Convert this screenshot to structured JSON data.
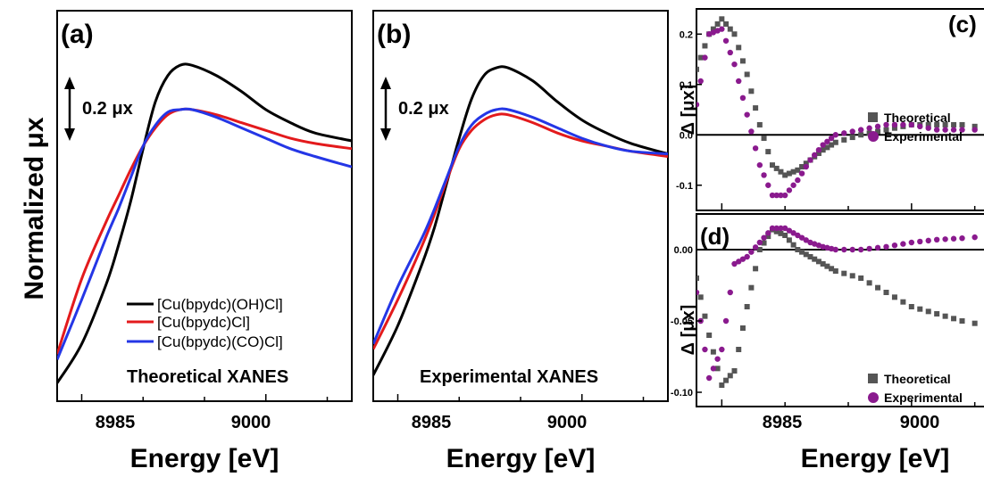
{
  "figure": {
    "ylabel": "Normalized μx",
    "xlabel": "Energy [eV]",
    "scalebar_label": "0.2 μx"
  },
  "colors": {
    "black_series": "#000000",
    "red_series": "#e31a1c",
    "blue_series": "#2436e6",
    "theoretical_marker": "#555555",
    "experimental_marker": "#8a1a8e"
  },
  "chart_data": [
    {
      "panel": "(a)",
      "type": "line",
      "annotation": "Theoretical XANES",
      "xlabel": "Energy [eV]",
      "ylabel": "Normalized μx",
      "xlim": [
        8983,
        9007
      ],
      "xticks": [
        8985,
        9000
      ],
      "scalebar": 0.2,
      "legend_position": "bottom-center",
      "series": [
        {
          "name": "[Cu(bpydc)(OH)Cl]",
          "color": "#000000",
          "x": [
            8983,
            8985,
            8987,
            8988,
            8989,
            8990,
            8991,
            8992,
            8993,
            8994,
            8996,
            8998,
            9000,
            9002,
            9004,
            9007
          ],
          "y": [
            0.02,
            0.17,
            0.4,
            0.55,
            0.72,
            0.92,
            1.1,
            1.2,
            1.24,
            1.24,
            1.2,
            1.14,
            1.07,
            1.02,
            0.98,
            0.95
          ]
        },
        {
          "name": "[Cu(bpydc)Cl]",
          "color": "#e31a1c",
          "x": [
            8983,
            8985,
            8987,
            8988,
            8989,
            8990,
            8991,
            8992,
            8993,
            8994,
            8996,
            8998,
            9000,
            9002,
            9004,
            9007
          ],
          "y": [
            0.13,
            0.42,
            0.64,
            0.74,
            0.84,
            0.93,
            1.0,
            1.05,
            1.07,
            1.07,
            1.05,
            1.02,
            0.99,
            0.96,
            0.94,
            0.92
          ]
        },
        {
          "name": "[Cu(bpydc)(CO)Cl]",
          "color": "#2436e6",
          "x": [
            8983,
            8985,
            8987,
            8988,
            8989,
            8990,
            8991,
            8992,
            8993,
            8994,
            8996,
            8998,
            9000,
            9002,
            9004,
            9007
          ],
          "y": [
            0.11,
            0.34,
            0.58,
            0.69,
            0.81,
            0.93,
            1.01,
            1.06,
            1.07,
            1.07,
            1.04,
            1.0,
            0.96,
            0.92,
            0.89,
            0.85
          ]
        }
      ]
    },
    {
      "panel": "(b)",
      "type": "line",
      "annotation": "Experimental XANES",
      "xlabel": "Energy [eV]",
      "xlim": [
        8983,
        9007
      ],
      "xticks": [
        8985,
        9000
      ],
      "scalebar": 0.2,
      "series": [
        {
          "name": "[Cu(bpydc)(OH)Cl]",
          "color": "#000000",
          "x": [
            8983,
            8985,
            8987,
            8988,
            8989,
            8990,
            8991,
            8992,
            8993,
            8994,
            8996,
            8998,
            9000,
            9002,
            9004,
            9007
          ],
          "y": [
            0.05,
            0.24,
            0.48,
            0.62,
            0.79,
            0.96,
            1.11,
            1.2,
            1.23,
            1.23,
            1.18,
            1.1,
            1.03,
            0.98,
            0.94,
            0.9
          ]
        },
        {
          "name": "[Cu(bpydc)Cl]",
          "color": "#e31a1c",
          "x": [
            8983,
            8985,
            8987,
            8988,
            8989,
            8990,
            8991,
            8992,
            8993,
            8994,
            8996,
            8998,
            9000,
            9002,
            9004,
            9007
          ],
          "y": [
            0.15,
            0.34,
            0.55,
            0.67,
            0.8,
            0.92,
            0.99,
            1.03,
            1.05,
            1.05,
            1.02,
            0.98,
            0.95,
            0.93,
            0.91,
            0.89
          ]
        },
        {
          "name": "[Cu(bpydc)(CO)Cl]",
          "color": "#2436e6",
          "x": [
            8983,
            8985,
            8987,
            8988,
            8989,
            8990,
            8991,
            8992,
            8993,
            8994,
            8996,
            8998,
            9000,
            9002,
            9004,
            9007
          ],
          "y": [
            0.17,
            0.39,
            0.58,
            0.69,
            0.81,
            0.93,
            1.01,
            1.05,
            1.07,
            1.07,
            1.04,
            1.0,
            0.96,
            0.93,
            0.91,
            0.9
          ]
        }
      ]
    },
    {
      "panel": "(c)",
      "type": "scatter",
      "ylabel": "Δ [μx]",
      "xlim": [
        8983,
        9007
      ],
      "ylim": [
        -0.15,
        0.25
      ],
      "yticks": [
        -0.1,
        0.0,
        0.1,
        0.2
      ],
      "ytick_labels": [
        "-0.1",
        "0.0",
        "0.1",
        "0.2"
      ],
      "zero_line": true,
      "legend_position": "right-middle",
      "series": [
        {
          "name": "Theoretical",
          "marker": "square",
          "color": "#555555",
          "x": [
            8983,
            8984,
            8985,
            8986,
            8987,
            8988,
            8989,
            8990,
            8991,
            8992,
            8993,
            8994,
            8996,
            8998,
            9000,
            9002,
            9004,
            9007
          ],
          "y": [
            0.13,
            0.2,
            0.23,
            0.2,
            0.12,
            0.02,
            -0.06,
            -0.08,
            -0.07,
            -0.05,
            -0.03,
            -0.015,
            0.0,
            0.01,
            0.02,
            0.02,
            0.02,
            0.01
          ]
        },
        {
          "name": "Experimental",
          "marker": "circle",
          "color": "#8a1a8e",
          "x": [
            8983,
            8984,
            8985,
            8986,
            8987,
            8988,
            8989,
            8990,
            8991,
            8992,
            8993,
            8994,
            8996,
            8998,
            9000,
            9002,
            9004,
            9007
          ],
          "y": [
            0.06,
            0.2,
            0.21,
            0.14,
            0.04,
            -0.06,
            -0.12,
            -0.12,
            -0.09,
            -0.05,
            -0.02,
            0.0,
            0.01,
            0.02,
            0.02,
            0.01,
            0.01,
            0.01
          ]
        }
      ]
    },
    {
      "panel": "(d)",
      "type": "scatter",
      "ylabel": "Δ [μx]",
      "xlabel": "Energy [eV]",
      "xlim": [
        8983,
        9007
      ],
      "ylim": [
        -0.11,
        0.025
      ],
      "yticks": [
        -0.1,
        -0.05,
        0.0
      ],
      "ytick_labels": [
        "-0.10",
        "-0.05",
        "0.00"
      ],
      "xticks": [
        8985,
        9000
      ],
      "zero_line": true,
      "legend_position": "bottom-right",
      "series": [
        {
          "name": "Theoretical",
          "marker": "square",
          "color": "#555555",
          "x": [
            8983,
            8984,
            8985,
            8986,
            8987,
            8988,
            8989,
            8990,
            8991,
            8992,
            8993,
            8994,
            8996,
            8998,
            9000,
            9002,
            9004,
            9007
          ],
          "y": [
            -0.02,
            -0.06,
            -0.095,
            -0.085,
            -0.04,
            0.0,
            0.014,
            0.01,
            0.0,
            -0.005,
            -0.01,
            -0.015,
            -0.02,
            -0.03,
            -0.04,
            -0.045,
            -0.05,
            -0.055
          ]
        },
        {
          "name": "Experimental",
          "marker": "circle",
          "color": "#8a1a8e",
          "x": [
            8983,
            8984,
            8985,
            8986,
            8987,
            8988,
            8989,
            8990,
            8991,
            8992,
            8993,
            8994,
            8996,
            8998,
            9000,
            9002,
            9004,
            9007
          ],
          "y": [
            -0.03,
            -0.09,
            -0.07,
            -0.01,
            -0.005,
            0.005,
            0.015,
            0.015,
            0.01,
            0.005,
            0.002,
            0.0,
            0.0,
            0.002,
            0.005,
            0.007,
            0.008,
            0.01
          ]
        }
      ]
    }
  ]
}
